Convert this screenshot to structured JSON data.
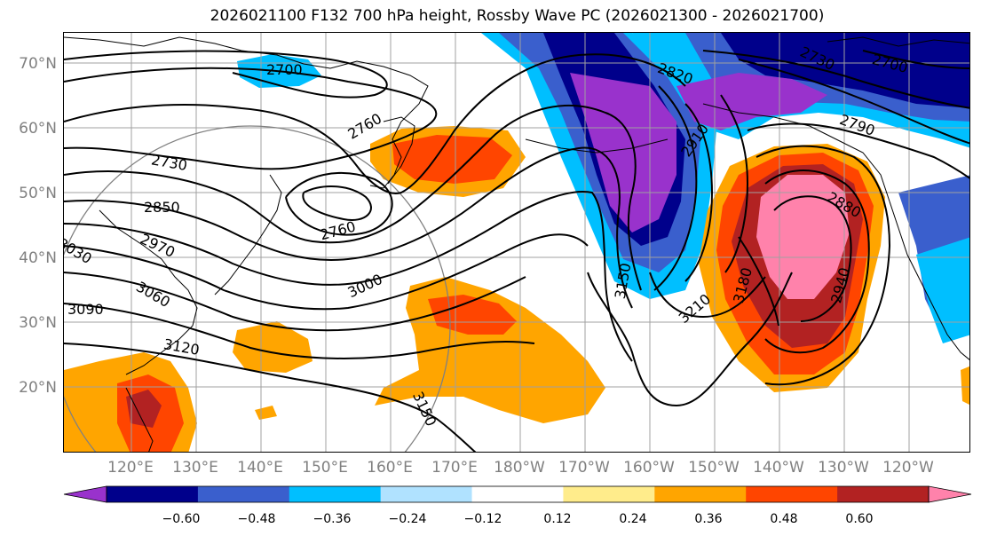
{
  "title": "2026021100 F132 700 hPa height, Rossby Wave PC (2026021300 - 2026021700)",
  "latitude_labels": [
    "70°N",
    "60°N",
    "50°N",
    "40°N",
    "30°N",
    "20°N"
  ],
  "longitude_labels": [
    "120°E",
    "130°E",
    "140°E",
    "150°E",
    "160°E",
    "170°E",
    "180°W",
    "170°W",
    "160°W",
    "150°W",
    "140°W",
    "130°W",
    "120°W"
  ],
  "contour_labels": [
    "2700",
    "2760",
    "2730",
    "2850",
    "2760",
    "2970",
    "3000",
    "3030",
    "3060",
    "3090",
    "3120",
    "3150",
    "2820",
    "2730",
    "2700",
    "2790",
    "2910",
    "2880",
    "3150",
    "3180",
    "3210",
    "2940"
  ],
  "colorbar": {
    "colors": [
      "#9932cc",
      "#00008b",
      "#3a5fcd",
      "#00bfff",
      "#b0e2ff",
      "#ffffff",
      "#ffec8b",
      "#ffa500",
      "#ff4500",
      "#b22222",
      "#ff82ab"
    ],
    "tick_labels": [
      "−0.60",
      "−0.48",
      "−0.36",
      "−0.24",
      "−0.12",
      "0.12",
      "0.24",
      "0.36",
      "0.48",
      "0.60"
    ],
    "extend": "both"
  },
  "colors": {
    "grid": "#a0a0a0",
    "contour": "#000000",
    "axis_label": "#808080"
  }
}
